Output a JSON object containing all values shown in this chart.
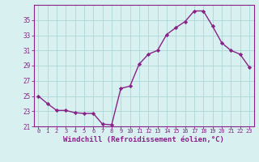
{
  "x": [
    0,
    1,
    2,
    3,
    4,
    5,
    6,
    7,
    8,
    9,
    10,
    11,
    12,
    13,
    14,
    15,
    16,
    17,
    18,
    19,
    20,
    21,
    22,
    23
  ],
  "y": [
    25.0,
    24.0,
    23.1,
    23.1,
    22.8,
    22.7,
    22.7,
    21.3,
    21.2,
    26.0,
    26.3,
    29.2,
    30.5,
    31.0,
    33.1,
    34.0,
    34.8,
    36.2,
    36.2,
    34.2,
    32.0,
    31.0,
    30.5,
    28.8
  ],
  "line_color": "#882288",
  "marker": "D",
  "marker_size": 2.2,
  "linewidth": 1.0,
  "xlabel": "Windchill (Refroidissement éolien,°C)",
  "xlabel_fontsize": 6.5,
  "bg_color": "#d8f0f0",
  "grid_color": "#b0dada",
  "tick_color": "#882288",
  "ylim": [
    21,
    37
  ],
  "yticks": [
    21,
    23,
    25,
    27,
    29,
    31,
    33,
    35
  ],
  "xticks": [
    0,
    1,
    2,
    3,
    4,
    5,
    6,
    7,
    8,
    9,
    10,
    11,
    12,
    13,
    14,
    15,
    16,
    17,
    18,
    19,
    20,
    21,
    22,
    23
  ],
  "xtick_labels": [
    "0",
    "1",
    "2",
    "3",
    "4",
    "5",
    "6",
    "7",
    "8",
    "9",
    "10",
    "11",
    "12",
    "13",
    "14",
    "15",
    "16",
    "17",
    "18",
    "19",
    "20",
    "21",
    "22",
    "23"
  ],
  "figsize": [
    3.2,
    2.0
  ],
  "dpi": 100
}
